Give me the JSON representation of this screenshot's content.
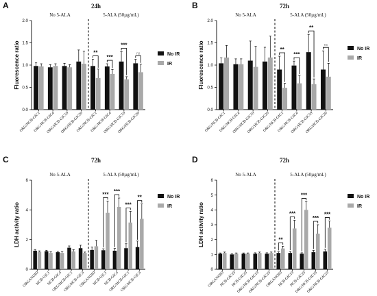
{
  "colors": {
    "no_ir": "#111111",
    "ir": "#a9a9a9",
    "axis": "#000000",
    "bracket": "#000000"
  },
  "chart_data": [
    {
      "panel": "A",
      "type": "bar",
      "title": "24h",
      "ylabel": "Fluorescence ratio",
      "xlabel": "",
      "ylim": [
        0,
        2.0
      ],
      "yticks": [
        "0.0",
        "0.5",
        "1.0",
        "1.5",
        "2.0"
      ],
      "group_labels": [
        "No 5-ALA",
        "5-ALA (50µg/mL)"
      ],
      "divider_after_index": 3,
      "categories": [
        "ORG/HCB-GIC1",
        "ORG/HCB-GIC4",
        "ORG/HCB-GIC19",
        "ORG/HCB-GIC20",
        "ORG/HCB-GIC1",
        "ORG/HCB-GIC4",
        "ORG/HCB-GIC19",
        "ORG/HCB-GIC20"
      ],
      "series": [
        {
          "name": "No IR",
          "values": [
            0.98,
            0.95,
            0.98,
            1.08,
            0.98,
            0.97,
            1.08,
            1.04
          ],
          "errors": [
            0.07,
            0.06,
            0.06,
            0.26,
            0.15,
            0.06,
            0.22,
            0.09
          ]
        },
        {
          "name": "IR",
          "values": [
            0.97,
            0.98,
            0.95,
            1.03,
            0.71,
            0.8,
            0.68,
            0.84
          ],
          "errors": [
            0.06,
            0.05,
            0.06,
            0.28,
            0.2,
            0.1,
            0.06,
            0.18
          ]
        }
      ],
      "significance": [
        {
          "index": 4,
          "label": "**"
        },
        {
          "index": 5,
          "label": "***"
        },
        {
          "index": 6,
          "label": "***"
        },
        {
          "index": 7,
          "label": "ns"
        }
      ],
      "legend": "right"
    },
    {
      "panel": "B",
      "type": "bar",
      "title": "72h",
      "ylabel": "Fluorescence ratio",
      "xlabel": "",
      "ylim": [
        0,
        2.0
      ],
      "yticks": [
        "0.0",
        "0.5",
        "1.0",
        "1.5",
        "2.0"
      ],
      "group_labels": [
        "No 5-ALA",
        "5-ALA (50µg/mL)"
      ],
      "divider_after_index": 3,
      "categories": [
        "ORG/HCB-GIC1",
        "ORG/HCB-GIC4",
        "ORG/HCB-GIC19",
        "ORG/HCB-GIC20",
        "ORG/HCB-GIC1",
        "ORG/HCB-GIC4",
        "ORG/HCB-GIC19",
        "ORG/HCB-GIC20"
      ],
      "series": [
        {
          "name": "No IR",
          "values": [
            1.04,
            1.02,
            1.1,
            1.08,
            0.9,
            0.99,
            1.29,
            0.9
          ],
          "errors": [
            0.12,
            0.12,
            0.44,
            0.32,
            0.3,
            0.1,
            0.4,
            0.42
          ]
        },
        {
          "name": "IR",
          "values": [
            1.17,
            1.02,
            0.96,
            1.17,
            0.49,
            0.59,
            0.57,
            0.74
          ],
          "errors": [
            0.27,
            0.12,
            0.46,
            0.48,
            0.1,
            0.18,
            0.12,
            0.3
          ]
        }
      ],
      "significance": [
        {
          "index": 4,
          "label": "**"
        },
        {
          "index": 5,
          "label": "***"
        },
        {
          "index": 6,
          "label": "**"
        },
        {
          "index": 7,
          "label": "ns"
        }
      ],
      "legend": "right"
    },
    {
      "panel": "C",
      "type": "bar",
      "title": "72h",
      "ylabel": "LDH activity ratio",
      "xlabel": "",
      "ylim": [
        0,
        6
      ],
      "yticks": [
        "0",
        "2",
        "4",
        "6"
      ],
      "group_labels": [
        "No 5-ALA",
        "5-ALA (50µg/mL)"
      ],
      "divider_after_index": 4,
      "categories": [
        "ORGANOID",
        "HCB-GIC1",
        "HCB-GIC4",
        "ORG/HCB-GIC1",
        "ORG/HCB-GIC4",
        "ORGANOID",
        "HCB-GIC1",
        "HCB-GIC4",
        "ORG/HCB-GIC1",
        "ORG/HCB-GIC4"
      ],
      "series": [
        {
          "name": "No IR",
          "values": [
            1.25,
            1.22,
            1.15,
            1.45,
            1.42,
            1.3,
            1.28,
            1.25,
            1.42,
            1.5
          ],
          "errors": [
            0.08,
            0.06,
            0.06,
            0.12,
            0.2,
            0.2,
            0.1,
            0.15,
            0.3,
            0.4
          ]
        },
        {
          "name": "IR",
          "values": [
            1.18,
            1.1,
            1.1,
            1.2,
            1.1,
            1.55,
            3.8,
            4.2,
            3.15,
            3.4
          ],
          "errors": [
            0.06,
            0.08,
            0.08,
            0.12,
            0.06,
            0.4,
            0.8,
            0.6,
            0.75,
            1.0
          ]
        }
      ],
      "significance": [
        {
          "index": 6,
          "label": "***"
        },
        {
          "index": 7,
          "label": "***"
        },
        {
          "index": 8,
          "label": "***"
        },
        {
          "index": 9,
          "label": "**"
        }
      ],
      "legend": "right"
    },
    {
      "panel": "D",
      "type": "bar",
      "title": "72h",
      "ylabel": "LDH activity ratio",
      "xlabel": "",
      "ylim": [
        0,
        6
      ],
      "yticks": [
        "0",
        "1",
        "2",
        "3",
        "4",
        "5",
        "6"
      ],
      "group_labels": [
        "No 5-ALA",
        "5-ALA (50µg/mL)"
      ],
      "divider_after_index": 4,
      "categories": [
        "ORGANOID",
        "HCB-GIC19",
        "HCB-GIC20",
        "ORG/HCB-GIC19",
        "ORG/HCB-GIC20",
        "ORGANOID",
        "HCB-GIC19",
        "HCB-GIC20",
        "ORG/HCB-GIC19",
        "ORG/HCB-GIC20"
      ],
      "series": [
        {
          "name": "No IR",
          "values": [
            1.05,
            1.0,
            1.05,
            1.05,
            1.05,
            1.1,
            1.1,
            1.05,
            1.15,
            1.2
          ],
          "errors": [
            0.05,
            0.05,
            0.05,
            0.06,
            0.06,
            0.08,
            0.1,
            0.06,
            0.12,
            0.15
          ]
        },
        {
          "name": "IR",
          "values": [
            1.1,
            1.05,
            1.05,
            1.1,
            1.1,
            1.4,
            2.75,
            4.0,
            2.4,
            2.8
          ],
          "errors": [
            0.06,
            0.05,
            0.05,
            0.06,
            0.06,
            0.15,
            0.55,
            0.55,
            0.6,
            0.45
          ]
        }
      ],
      "significance": [
        {
          "index": 5,
          "label": "**"
        },
        {
          "index": 6,
          "label": "***"
        },
        {
          "index": 7,
          "label": "***"
        },
        {
          "index": 8,
          "label": "***"
        },
        {
          "index": 9,
          "label": "***"
        }
      ],
      "legend": "right"
    }
  ]
}
